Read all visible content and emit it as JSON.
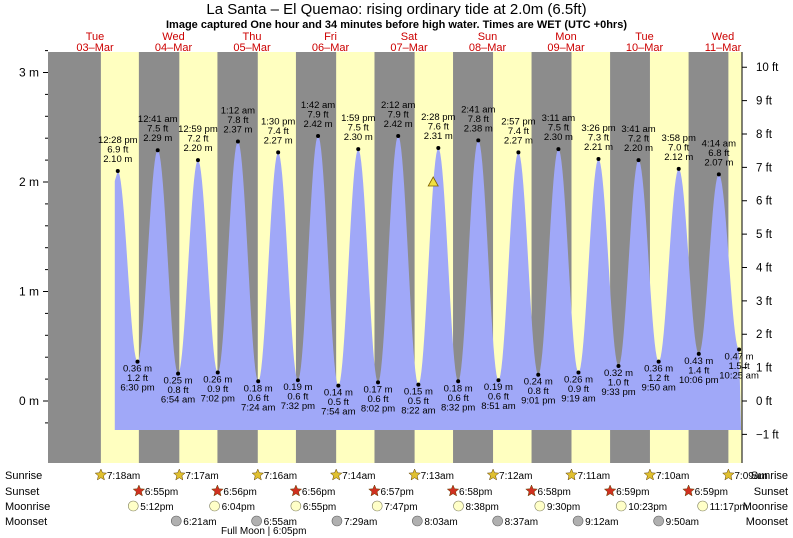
{
  "title": "La Santa – El Quemao: rising  ordinary tide at 2.0m (6.5ft)",
  "subtitle": "Image captured One hour and 34 minutes before high water. Times are WET (UTC +0hrs)",
  "chart_data": {
    "type": "area",
    "title": "La Santa – El Quemao: rising  ordinary tide at 2.0m (6.5ft)",
    "ylabel_left_unit": "m",
    "ylabel_right_unit": "ft",
    "y_ticks_m": [
      "3 m",
      "2 m",
      "1 m",
      "0 m"
    ],
    "y_ticks_m_values": [
      3,
      2,
      1,
      0
    ],
    "y_ticks_ft": [
      "10 ft",
      "9 ft",
      "8 ft",
      "7 ft",
      "6 ft",
      "5 ft",
      "4 ft",
      "3 ft",
      "2 ft",
      "1 ft",
      "0 ft",
      "−1 ft"
    ],
    "y_ticks_ft_values": [
      10,
      9,
      8,
      7,
      6,
      5,
      4,
      3,
      2,
      1,
      0,
      -1
    ],
    "days": [
      {
        "name": "Tue",
        "date": "03–Mar"
      },
      {
        "name": "Wed",
        "date": "04–Mar"
      },
      {
        "name": "Thu",
        "date": "05–Mar"
      },
      {
        "name": "Fri",
        "date": "06–Mar"
      },
      {
        "name": "Sat",
        "date": "07–Mar"
      },
      {
        "name": "Sun",
        "date": "08–Mar"
      },
      {
        "name": "Mon",
        "date": "09–Mar"
      },
      {
        "name": "Tue",
        "date": "10–Mar"
      },
      {
        "name": "Wed",
        "date": "11–Mar"
      }
    ],
    "tides": [
      {
        "type": "high",
        "time": "12:28 pm",
        "m": 2.1,
        "ft": "6.9 ft",
        "m_label": "2.10 m"
      },
      {
        "type": "low",
        "time": "6:30 pm",
        "m": 0.36,
        "ft": "1.2 ft",
        "m_label": "0.36 m"
      },
      {
        "type": "high",
        "time": "12:41 am",
        "m": 2.29,
        "ft": "7.5 ft",
        "m_label": "2.29 m"
      },
      {
        "type": "low",
        "time": "6:54 am",
        "m": 0.25,
        "ft": "0.8 ft",
        "m_label": "0.25 m"
      },
      {
        "type": "high",
        "time": "12:59 pm",
        "m": 2.2,
        "ft": "7.2 ft",
        "m_label": "2.20 m"
      },
      {
        "type": "low",
        "time": "7:02 pm",
        "m": 0.26,
        "ft": "0.9 ft",
        "m_label": "0.26 m"
      },
      {
        "type": "high",
        "time": "1:12 am",
        "m": 2.37,
        "ft": "7.8 ft",
        "m_label": "2.37 m"
      },
      {
        "type": "low",
        "time": "7:24 am",
        "m": 0.18,
        "ft": "0.6 ft",
        "m_label": "0.18 m"
      },
      {
        "type": "high",
        "time": "1:30 pm",
        "m": 2.27,
        "ft": "7.4 ft",
        "m_label": "2.27 m"
      },
      {
        "type": "low",
        "time": "7:32 pm",
        "m": 0.19,
        "ft": "0.6 ft",
        "m_label": "0.19 m"
      },
      {
        "type": "high",
        "time": "1:42 am",
        "m": 2.42,
        "ft": "7.9 ft",
        "m_label": "2.42 m"
      },
      {
        "type": "low",
        "time": "7:54 am",
        "m": 0.14,
        "ft": "0.5 ft",
        "m_label": "0.14 m"
      },
      {
        "type": "high",
        "time": "1:59 pm",
        "m": 2.3,
        "ft": "7.5 ft",
        "m_label": "2.30 m"
      },
      {
        "type": "low",
        "time": "8:02 pm",
        "m": 0.17,
        "ft": "0.6 ft",
        "m_label": "0.17 m"
      },
      {
        "type": "high",
        "time": "2:12 am",
        "m": 2.42,
        "ft": "7.9 ft",
        "m_label": "2.42 m"
      },
      {
        "type": "low",
        "time": "8:22 am",
        "m": 0.15,
        "ft": "0.5 ft",
        "m_label": "0.15 m"
      },
      {
        "type": "high",
        "time": "2:28 pm",
        "m": 2.31,
        "ft": "7.6 ft",
        "m_label": "2.31 m"
      },
      {
        "type": "low",
        "time": "8:32 pm",
        "m": 0.18,
        "ft": "0.6 ft",
        "m_label": "0.18 m"
      },
      {
        "type": "high",
        "time": "2:41 am",
        "m": 2.38,
        "ft": "7.8 ft",
        "m_label": "2.38 m"
      },
      {
        "type": "low",
        "time": "8:51 am",
        "m": 0.19,
        "ft": "0.6 ft",
        "m_label": "0.19 m"
      },
      {
        "type": "high",
        "time": "2:57 pm",
        "m": 2.27,
        "ft": "7.4 ft",
        "m_label": "2.27 m"
      },
      {
        "type": "low",
        "time": "9:01 pm",
        "m": 0.24,
        "ft": "0.8 ft",
        "m_label": "0.24 m"
      },
      {
        "type": "high",
        "time": "3:11 am",
        "m": 2.3,
        "ft": "7.5 ft",
        "m_label": "2.30 m"
      },
      {
        "type": "low",
        "time": "9:19 am",
        "m": 0.26,
        "ft": "0.9 ft",
        "m_label": "0.26 m"
      },
      {
        "type": "high",
        "time": "3:26 pm",
        "m": 2.21,
        "ft": "7.3 ft",
        "m_label": "2.21 m"
      },
      {
        "type": "low",
        "time": "9:33 pm",
        "m": 0.32,
        "ft": "1.0 ft",
        "m_label": "0.32 m"
      },
      {
        "type": "high",
        "time": "3:41 am",
        "m": 2.2,
        "ft": "7.2 ft",
        "m_label": "2.20 m"
      },
      {
        "type": "low",
        "time": "9:50 am",
        "m": 0.36,
        "ft": "1.2 ft",
        "m_label": "0.36 m"
      },
      {
        "type": "high",
        "time": "3:58 pm",
        "m": 2.12,
        "ft": "7.0 ft",
        "m_label": "2.12 m"
      },
      {
        "type": "low",
        "time": "10:06 pm",
        "m": 0.43,
        "ft": "1.4 ft",
        "m_label": "0.43 m"
      },
      {
        "type": "high",
        "time": "4:14 am",
        "m": 2.07,
        "ft": "6.8 ft",
        "m_label": "2.07 m"
      },
      {
        "type": "low",
        "time": "10:25 am",
        "m": 0.47,
        "ft": "1.5 ft",
        "m_label": "0.47 m"
      }
    ],
    "current_level_m": 2.0,
    "astro_labels": [
      "Sunrise",
      "Sunset",
      "Moonrise",
      "Moonset"
    ],
    "sunrise": [
      "7:18am",
      "7:17am",
      "7:16am",
      "7:14am",
      "7:13am",
      "7:12am",
      "7:11am",
      "7:10am",
      "7:09am"
    ],
    "sunset": [
      "6:55pm",
      "6:56pm",
      "6:56pm",
      "6:57pm",
      "6:58pm",
      "6:58pm",
      "6:59pm",
      "6:59pm"
    ],
    "moonrise": [
      "5:12pm",
      "6:04pm",
      "6:55pm",
      "7:47pm",
      "8:38pm",
      "9:30pm",
      "10:23pm",
      "11:17pm"
    ],
    "moonset": [
      "6:21am",
      "6:55am",
      "7:29am",
      "8:03am",
      "8:37am",
      "9:12am",
      "9:50am"
    ],
    "full_moon": "Full Moon | 6:05pm",
    "colors": {
      "night": "#8c8c8c",
      "day": "#ffffc0",
      "water": "#a0a8f8",
      "day_text": "#cc0000",
      "sun_star": "#e0c030",
      "sunset_star": "#d03020",
      "moon_rise": "#ffffc8",
      "moon_set": "#b0b0b0"
    }
  }
}
